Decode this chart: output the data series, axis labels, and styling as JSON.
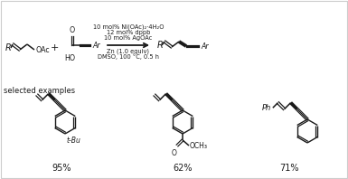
{
  "bg_color": "#ffffff",
  "reaction_conditions_line1": "10 mol% Ni(OAc)₂·4H₂O",
  "reaction_conditions_line2": "12 mol% dppb",
  "reaction_conditions_line3": "10 mol% AgOAc",
  "reaction_conditions_line4": "Zn (1.0 equiv)",
  "reaction_conditions_line5": "DMSO, 100 °C, 0.5 h",
  "selected_examples_label": "selected examples",
  "yield1": "95%",
  "yield2": "62%",
  "yield3": "71%",
  "label_tBu": "t-Bu",
  "label_OCH3": "OCH₃",
  "label_Ph": "Ph",
  "text_color": "#1a1a1a",
  "line_color": "#1a1a1a",
  "font_size_main": 7.0,
  "font_size_small": 6.0,
  "font_size_cond": 4.8
}
